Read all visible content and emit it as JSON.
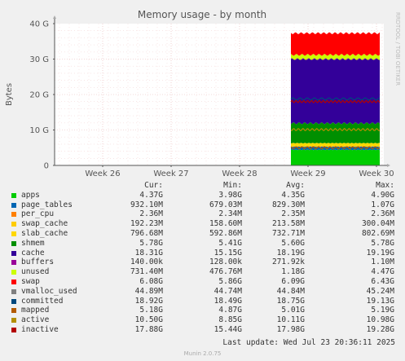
{
  "chart_data": {
    "type": "area",
    "title": "Memory usage - by month",
    "ylabel": "Bytes",
    "xlabel": "",
    "side_label": "RRDTOOL / TOBI OETIKER",
    "ylim": [
      0,
      40
    ],
    "y_ticks": [
      "0",
      "10 G",
      "20 G",
      "30 G",
      "40 G"
    ],
    "y_tick_values": [
      0,
      10,
      20,
      30,
      40
    ],
    "x_ticks": [
      "Week 26",
      "Week 27",
      "Week 28",
      "Week 29",
      "Week 30"
    ],
    "grid": true,
    "data_range_weeks": [
      "Week 29",
      "Week 30"
    ],
    "stacked_series_top_G": [
      {
        "name": "apps",
        "color": "#00cc00",
        "top": 4.4
      },
      {
        "name": "page_tables",
        "color": "#0066b3",
        "top": 5.3
      },
      {
        "name": "per_cpu",
        "color": "#ff8000",
        "top": 5.3
      },
      {
        "name": "swap_cache",
        "color": "#ffcc00",
        "top": 5.5
      },
      {
        "name": "slab_cache",
        "color": "#ffd700",
        "top": 6.3
      },
      {
        "name": "shmem",
        "color": "#008f00",
        "top": 11.9
      },
      {
        "name": "cache",
        "color": "#330099",
        "top": 30.0
      },
      {
        "name": "buffers",
        "color": "#990099",
        "top": 30.0
      },
      {
        "name": "unused",
        "color": "#ccff00",
        "top": 31.2
      },
      {
        "name": "swap",
        "color": "#ff0000",
        "top": 37.3
      }
    ],
    "line_series_G": [
      {
        "name": "committed",
        "color": "#00487d",
        "value": 18.75
      },
      {
        "name": "mapped",
        "color": "#b35a00",
        "value": 5.0
      },
      {
        "name": "active",
        "color": "#b38f00",
        "value": 10.1
      },
      {
        "name": "inactive",
        "color": "#b30000",
        "value": 18.0
      }
    ]
  },
  "legend": {
    "headers": {
      "cur": "Cur:",
      "min": "Min:",
      "avg": "Avg:",
      "max": "Max:"
    },
    "rows": [
      {
        "name": "apps",
        "color": "#00cc00",
        "cur": "4.37G",
        "min": "3.98G",
        "avg": "4.35G",
        "max": "4.90G"
      },
      {
        "name": "page_tables",
        "color": "#0066b3",
        "cur": "932.10M",
        "min": "679.03M",
        "avg": "829.30M",
        "max": "1.07G"
      },
      {
        "name": "per_cpu",
        "color": "#ff8000",
        "cur": "2.36M",
        "min": "2.34M",
        "avg": "2.35M",
        "max": "2.36M"
      },
      {
        "name": "swap_cache",
        "color": "#ffcc00",
        "cur": "192.23M",
        "min": "158.60M",
        "avg": "213.58M",
        "max": "300.04M"
      },
      {
        "name": "slab_cache",
        "color": "#ffd700",
        "cur": "796.68M",
        "min": "592.86M",
        "avg": "732.71M",
        "max": "802.69M"
      },
      {
        "name": "shmem",
        "color": "#008f00",
        "cur": "5.78G",
        "min": "5.41G",
        "avg": "5.60G",
        "max": "5.78G"
      },
      {
        "name": "cache",
        "color": "#330099",
        "cur": "18.31G",
        "min": "15.15G",
        "avg": "18.19G",
        "max": "19.19G"
      },
      {
        "name": "buffers",
        "color": "#990099",
        "cur": "140.00k",
        "min": "128.00k",
        "avg": "271.92k",
        "max": "1.10M"
      },
      {
        "name": "unused",
        "color": "#ccff00",
        "cur": "731.40M",
        "min": "476.76M",
        "avg": "1.18G",
        "max": "4.47G"
      },
      {
        "name": "swap",
        "color": "#ff0000",
        "cur": "6.08G",
        "min": "5.86G",
        "avg": "6.09G",
        "max": "6.43G"
      },
      {
        "name": "vmalloc_used",
        "color": "#808080",
        "cur": "44.89M",
        "min": "44.74M",
        "avg": "44.84M",
        "max": "45.24M"
      },
      {
        "name": "committed",
        "color": "#00487d",
        "cur": "18.92G",
        "min": "18.49G",
        "avg": "18.75G",
        "max": "19.13G"
      },
      {
        "name": "mapped",
        "color": "#b35a00",
        "cur": "5.18G",
        "min": "4.87G",
        "avg": "5.01G",
        "max": "5.19G"
      },
      {
        "name": "active",
        "color": "#b38f00",
        "cur": "10.50G",
        "min": "8.85G",
        "avg": "10.11G",
        "max": "10.98G"
      },
      {
        "name": "inactive",
        "color": "#b30000",
        "cur": "17.88G",
        "min": "15.44G",
        "avg": "17.98G",
        "max": "19.28G"
      }
    ]
  },
  "last_update": "Last update: Wed Jul 23 20:36:11 2025",
  "version": "Munin 2.0.75"
}
